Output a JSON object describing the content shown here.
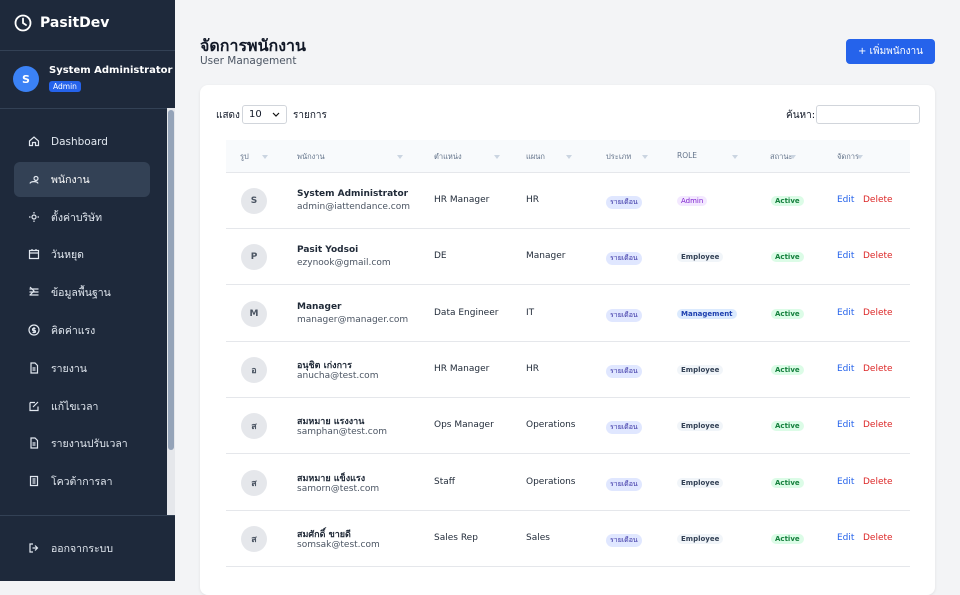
{
  "sidebar": {
    "brand": "PasitDev",
    "user": {
      "initial": "S",
      "name": "System Administrator",
      "role": "Admin"
    },
    "nav": [
      "Dashboard",
      "พนักงาน",
      "ตั้งค่าบริษัท",
      "วันหยุด",
      "ข้อมูลพื้นฐาน",
      "คิดค่าแรง",
      "รายงาน",
      "แก้ไขเวลา",
      "รายงานปรับเวลา",
      "โควต้าการลา"
    ],
    "logout": "ออกจากระบบ"
  },
  "header": {
    "title": "จัดการพนักงาน",
    "subtitle": "User Management",
    "add_button": "+ เพิ่มพนักงาน"
  },
  "table": {
    "show_label": "แสดง",
    "page_length": "10",
    "entries_label": "รายการ",
    "search_label": "ค้นหา:",
    "columns": [
      "รูป",
      "พนักงาน",
      "ตำแหน่ง",
      "แผนก",
      "ประเภท",
      "ROLE",
      "สถานะ",
      "จัดการ"
    ],
    "rows": [
      {
        "initial": "S",
        "name": "System Administrator",
        "email": "admin@iattendance.com",
        "position": "HR Manager",
        "department": "HR",
        "type": "รายเดือน",
        "role": "Admin",
        "status": "Active",
        "edit": "Edit",
        "delete": "Delete"
      },
      {
        "initial": "P",
        "name": "Pasit Yodsoi",
        "email": "ezynook@gmail.com",
        "position": "DE",
        "department": "Manager",
        "type": "รายเดือน",
        "role": "Employee",
        "status": "Active",
        "edit": "Edit",
        "delete": "Delete"
      },
      {
        "initial": "M",
        "name": "Manager",
        "email": "manager@manager.com",
        "position": "Data Engineer",
        "department": "IT",
        "type": "รายเดือน",
        "role": "Management",
        "status": "Active",
        "edit": "Edit",
        "delete": "Delete"
      },
      {
        "initial": "อ",
        "name": "อนุชิต เก่งการ",
        "email": "anucha@test.com",
        "position": "HR Manager",
        "department": "HR",
        "type": "รายเดือน",
        "role": "Employee",
        "status": "Active",
        "edit": "Edit",
        "delete": "Delete"
      },
      {
        "initial": "ส",
        "name": "สมหมาย แรงงาน",
        "email": "samphan@test.com",
        "position": "Ops Manager",
        "department": "Operations",
        "type": "รายเดือน",
        "role": "Employee",
        "status": "Active",
        "edit": "Edit",
        "delete": "Delete"
      },
      {
        "initial": "ส",
        "name": "สมหมาย แข็งแรง",
        "email": "samorn@test.com",
        "position": "Staff",
        "department": "Operations",
        "type": "รายเดือน",
        "role": "Employee",
        "status": "Active",
        "edit": "Edit",
        "delete": "Delete"
      },
      {
        "initial": "ส",
        "name": "สมศักดิ์ ขายดี",
        "email": "somsak@test.com",
        "position": "Sales Rep",
        "department": "Sales",
        "type": "รายเดือน",
        "role": "Employee",
        "status": "Active",
        "edit": "Edit",
        "delete": "Delete"
      }
    ]
  }
}
